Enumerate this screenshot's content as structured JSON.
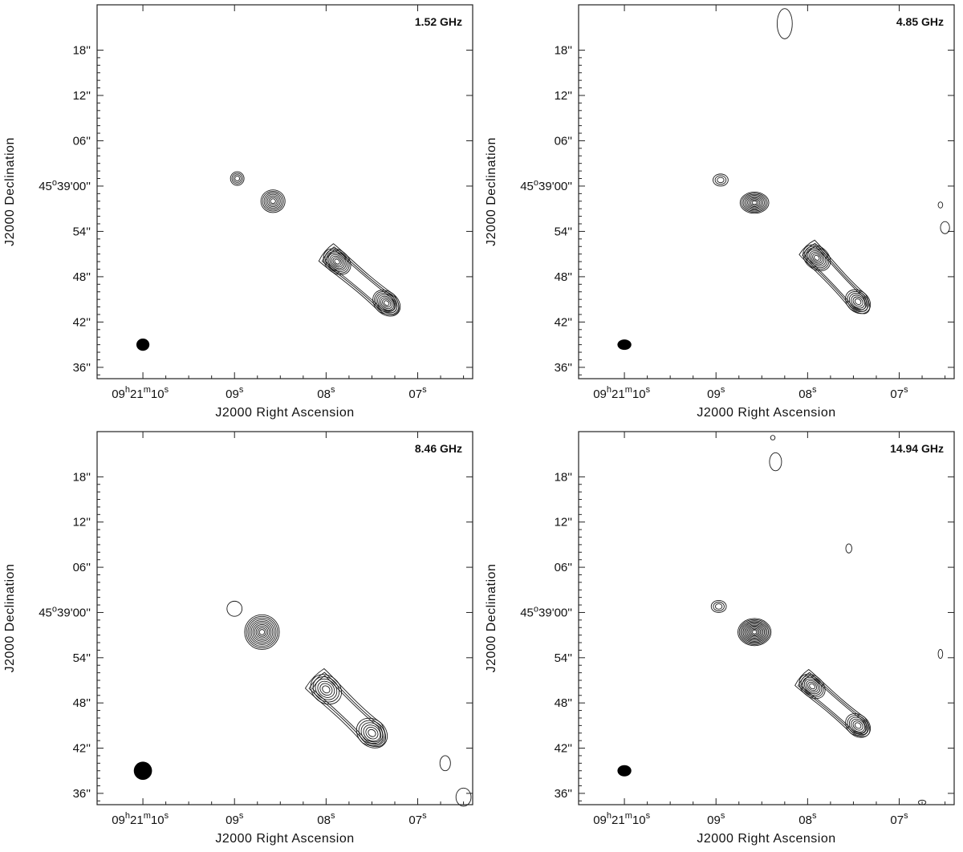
{
  "chart_data": [
    {
      "type": "contour",
      "title": "1.52 GHz",
      "xlabel": "J2000 Right Ascension",
      "ylabel": "J2000 Declination",
      "ra_ticks": [
        {
          "sec": 10,
          "label_parts": [
            "09",
            "h",
            "21",
            "m",
            "10",
            "s"
          ]
        },
        {
          "sec": 9,
          "label_parts": [
            "",
            "",
            "",
            "",
            "09",
            "s"
          ]
        },
        {
          "sec": 8,
          "label_parts": [
            "",
            "",
            "",
            "",
            "08",
            "s"
          ]
        },
        {
          "sec": 7,
          "label_parts": [
            "",
            "",
            "",
            "",
            "07",
            "s"
          ]
        }
      ],
      "dec_ticks": [
        {
          "arcsec": 18,
          "label": "18''"
        },
        {
          "arcsec": 12,
          "label": "12''"
        },
        {
          "arcsec": 6,
          "label": "06''"
        },
        {
          "arcsec": 0,
          "label_parts": [
            "45",
            "o",
            "39'00''"
          ]
        },
        {
          "arcsec": -6,
          "label": "54''"
        },
        {
          "arcsec": -12,
          "label": "48''"
        },
        {
          "arcsec": -18,
          "label": "42''"
        },
        {
          "arcsec": -24,
          "label": "36''"
        }
      ],
      "ra_range_sec": [
        10.5,
        6.4
      ],
      "dec_range_arcsec": [
        -25.5,
        24
      ],
      "beam": {
        "ra": 10.0,
        "dec": -21.0,
        "major_arcsec": 1.5,
        "minor_arcsec": 1.4
      },
      "features": [
        {
          "name": "small knot",
          "ra": 8.97,
          "dec": 1.0,
          "levels": 4,
          "rx": 0.9,
          "ry": 0.9
        },
        {
          "name": "core",
          "ra": 8.58,
          "dec": -2.0,
          "levels": 7,
          "rx": 1.6,
          "ry": 1.5
        },
        {
          "name": "jet blob 1",
          "ra": 7.88,
          "dec": -10.0,
          "levels": 8,
          "rx": 2.0,
          "ry": 1.5
        },
        {
          "name": "jet blob 2",
          "ra": 7.34,
          "dec": -15.5,
          "levels": 8,
          "rx": 2.0,
          "ry": 1.5
        }
      ]
    },
    {
      "type": "contour",
      "title": "4.85 GHz",
      "xlabel": "J2000 Right Ascension",
      "ylabel": "J2000 Declination",
      "ra_ticks": [
        {
          "sec": 10,
          "label_parts": [
            "09",
            "h",
            "21",
            "m",
            "10",
            "s"
          ]
        },
        {
          "sec": 9,
          "label_parts": [
            "",
            "",
            "",
            "",
            "09",
            "s"
          ]
        },
        {
          "sec": 8,
          "label_parts": [
            "",
            "",
            "",
            "",
            "08",
            "s"
          ]
        },
        {
          "sec": 7,
          "label_parts": [
            "",
            "",
            "",
            "",
            "07",
            "s"
          ]
        }
      ],
      "dec_ticks": [
        {
          "arcsec": 18,
          "label": "18''"
        },
        {
          "arcsec": 12,
          "label": "12''"
        },
        {
          "arcsec": 6,
          "label": "06''"
        },
        {
          "arcsec": 0,
          "label_parts": [
            "45",
            "o",
            "39'00''"
          ]
        },
        {
          "arcsec": -6,
          "label": "54''"
        },
        {
          "arcsec": -12,
          "label": "48''"
        },
        {
          "arcsec": -18,
          "label": "42''"
        },
        {
          "arcsec": -24,
          "label": "36''"
        }
      ],
      "ra_range_sec": [
        10.5,
        6.4
      ],
      "dec_range_arcsec": [
        -25.5,
        24
      ],
      "beam": {
        "ra": 10.0,
        "dec": -21.0,
        "major_arcsec": 1.6,
        "minor_arcsec": 1.2
      },
      "features": [
        {
          "name": "small knot",
          "ra": 8.95,
          "dec": 0.8,
          "levels": 3,
          "rx": 1.0,
          "ry": 0.8
        },
        {
          "name": "core",
          "ra": 8.58,
          "dec": -2.2,
          "levels": 9,
          "rx": 1.9,
          "ry": 1.4
        },
        {
          "name": "jet blob 1",
          "ra": 7.9,
          "dec": -9.5,
          "levels": 8,
          "rx": 2.0,
          "ry": 1.5
        },
        {
          "name": "jet blob 2",
          "ra": 7.45,
          "dec": -15.3,
          "levels": 6,
          "rx": 1.8,
          "ry": 1.4
        },
        {
          "name": "north noise",
          "ra": 8.25,
          "dec": 21.5,
          "levels": 1,
          "rx": 1.0,
          "ry": 2.0
        },
        {
          "name": "east noise a",
          "ra": 6.55,
          "dec": -2.5,
          "levels": 1,
          "rx": 0.3,
          "ry": 0.4
        },
        {
          "name": "east noise b",
          "ra": 6.5,
          "dec": -5.5,
          "levels": 1,
          "rx": 0.6,
          "ry": 0.8
        }
      ]
    },
    {
      "type": "contour",
      "title": "8.46 GHz",
      "xlabel": "J2000 Right Ascension",
      "ylabel": "J2000 Declination",
      "ra_ticks": [
        {
          "sec": 10,
          "label_parts": [
            "09",
            "h",
            "21",
            "m",
            "10",
            "s"
          ]
        },
        {
          "sec": 9,
          "label_parts": [
            "",
            "",
            "",
            "",
            "09",
            "s"
          ]
        },
        {
          "sec": 8,
          "label_parts": [
            "",
            "",
            "",
            "",
            "08",
            "s"
          ]
        },
        {
          "sec": 7,
          "label_parts": [
            "",
            "",
            "",
            "",
            "07",
            "s"
          ]
        }
      ],
      "dec_ticks": [
        {
          "arcsec": 18,
          "label": "18''"
        },
        {
          "arcsec": 12,
          "label": "12''"
        },
        {
          "arcsec": 6,
          "label": "06''"
        },
        {
          "arcsec": 0,
          "label_parts": [
            "45",
            "o",
            "39'00''"
          ]
        },
        {
          "arcsec": -6,
          "label": "54''"
        },
        {
          "arcsec": -12,
          "label": "48''"
        },
        {
          "arcsec": -18,
          "label": "42''"
        },
        {
          "arcsec": -24,
          "label": "36''"
        }
      ],
      "ra_range_sec": [
        10.5,
        6.4
      ],
      "dec_range_arcsec": [
        -25.5,
        24
      ],
      "beam": {
        "ra": 10.0,
        "dec": -21.0,
        "major_arcsec": 2.1,
        "minor_arcsec": 2.1
      },
      "features": [
        {
          "name": "small knot",
          "ra": 9.0,
          "dec": 0.5,
          "levels": 1,
          "rx": 1.0,
          "ry": 1.0
        },
        {
          "name": "core",
          "ra": 8.7,
          "dec": -2.6,
          "levels": 10,
          "rx": 2.3,
          "ry": 2.3
        },
        {
          "name": "jet blob 1",
          "ra": 8.0,
          "dec": -10.2,
          "levels": 6,
          "rx": 2.2,
          "ry": 1.8
        },
        {
          "name": "jet blob 2",
          "ra": 7.5,
          "dec": -16.0,
          "levels": 6,
          "rx": 2.2,
          "ry": 1.8
        },
        {
          "name": "south-east noise a",
          "ra": 6.7,
          "dec": -20.0,
          "levels": 1,
          "rx": 0.7,
          "ry": 1.0
        },
        {
          "name": "south-east noise b",
          "ra": 6.5,
          "dec": -24.5,
          "levels": 1,
          "rx": 1.0,
          "ry": 1.2
        }
      ]
    },
    {
      "type": "contour",
      "title": "14.94 GHz",
      "xlabel": "J2000 Right Ascension",
      "ylabel": "J2000 Declination",
      "ra_ticks": [
        {
          "sec": 10,
          "label_parts": [
            "09",
            "h",
            "21",
            "m",
            "10",
            "s"
          ]
        },
        {
          "sec": 9,
          "label_parts": [
            "",
            "",
            "",
            "",
            "09",
            "s"
          ]
        },
        {
          "sec": 8,
          "label_parts": [
            "",
            "",
            "",
            "",
            "08",
            "s"
          ]
        },
        {
          "sec": 7,
          "label_parts": [
            "",
            "",
            "",
            "",
            "07",
            "s"
          ]
        }
      ],
      "dec_ticks": [
        {
          "arcsec": 18,
          "label": "18''"
        },
        {
          "arcsec": 12,
          "label": "12''"
        },
        {
          "arcsec": 6,
          "label": "06''"
        },
        {
          "arcsec": 0,
          "label_parts": [
            "45",
            "o",
            "39'00''"
          ]
        },
        {
          "arcsec": -6,
          "label": "54''"
        },
        {
          "arcsec": -12,
          "label": "48''"
        },
        {
          "arcsec": -18,
          "label": "42''"
        },
        {
          "arcsec": -24,
          "label": "36''"
        }
      ],
      "ra_range_sec": [
        10.5,
        6.4
      ],
      "dec_range_arcsec": [
        -25.5,
        24
      ],
      "beam": {
        "ra": 10.0,
        "dec": -21.0,
        "major_arcsec": 1.6,
        "minor_arcsec": 1.3
      },
      "features": [
        {
          "name": "small knot",
          "ra": 8.97,
          "dec": 0.8,
          "levels": 3,
          "rx": 1.0,
          "ry": 0.8
        },
        {
          "name": "core",
          "ra": 8.58,
          "dec": -2.6,
          "levels": 12,
          "rx": 2.2,
          "ry": 1.8
        },
        {
          "name": "jet blob 1",
          "ra": 7.95,
          "dec": -9.8,
          "levels": 7,
          "rx": 1.9,
          "ry": 1.4
        },
        {
          "name": "jet blob 2",
          "ra": 7.45,
          "dec": -15.0,
          "levels": 6,
          "rx": 1.8,
          "ry": 1.4
        },
        {
          "name": "north noise a",
          "ra": 8.35,
          "dec": 20.0,
          "levels": 1,
          "rx": 0.8,
          "ry": 1.2
        },
        {
          "name": "north noise b",
          "ra": 8.38,
          "dec": 23.2,
          "levels": 1,
          "rx": 0.3,
          "ry": 0.3
        },
        {
          "name": "mid noise",
          "ra": 7.55,
          "dec": 8.5,
          "levels": 1,
          "rx": 0.4,
          "ry": 0.6
        },
        {
          "name": "east noise",
          "ra": 6.55,
          "dec": -5.5,
          "levels": 1,
          "rx": 0.3,
          "ry": 0.6
        },
        {
          "name": "south noise",
          "ra": 6.75,
          "dec": -25.2,
          "levels": 1,
          "rx": 0.5,
          "ry": 0.3
        }
      ]
    }
  ]
}
